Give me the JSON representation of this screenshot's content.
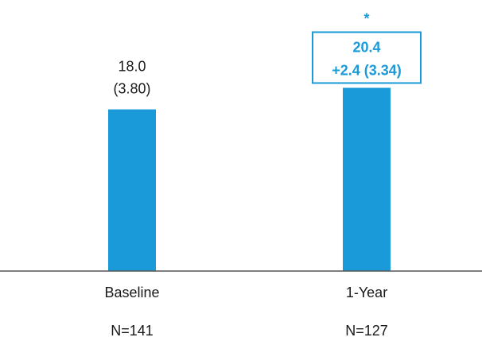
{
  "chart_data": {
    "type": "bar",
    "categories": [
      "Baseline",
      "1-Year"
    ],
    "sample_sizes": [
      "N=141",
      "N=127"
    ],
    "values": [
      18.0,
      20.4
    ],
    "data_labels": [
      [
        "18.0",
        "(3.80)"
      ],
      [
        "20.4",
        "+2.4 (3.34)"
      ]
    ],
    "highlighted": [
      false,
      true
    ],
    "significance_marker": [
      "",
      "*"
    ],
    "colors": {
      "bar": "#1a9ad9",
      "highlight_text": "#1a9ad9",
      "highlight_box": "#1a9ad9",
      "text": "#1a1a1a",
      "axis": "#555555"
    }
  }
}
